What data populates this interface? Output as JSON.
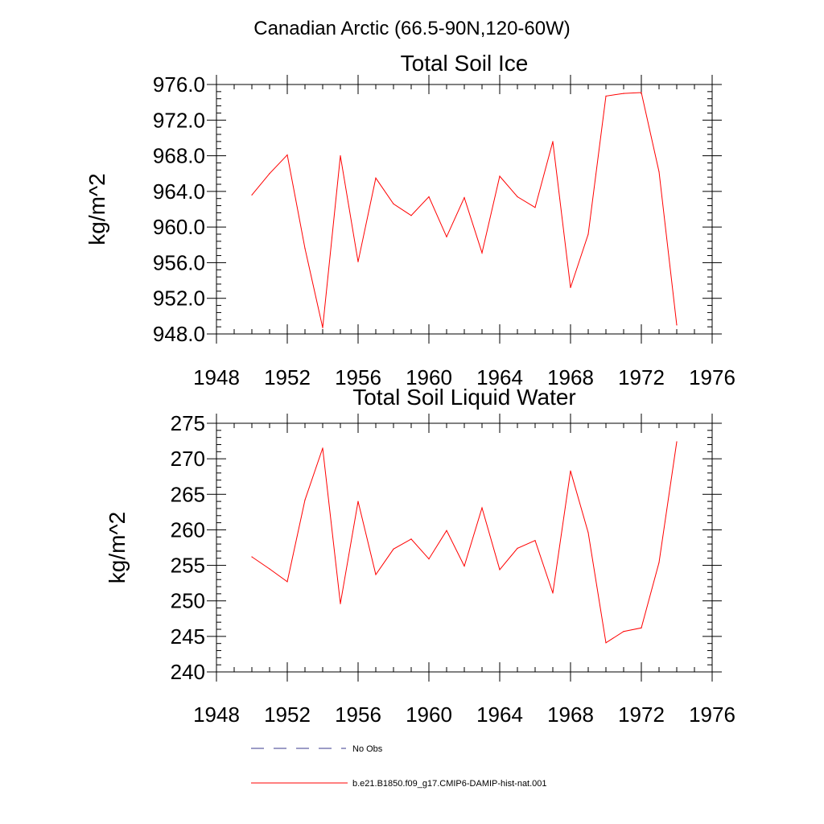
{
  "suptitle": "Canadian Arctic (66.5-90N,120-60W)",
  "colors": {
    "model_line": "#ff0000",
    "obs_line": "#3a3a8c",
    "axis": "#000000"
  },
  "legend": {
    "obs_label": "No Obs",
    "model_label": "b.e21.B1850.f09_g17.CMIP6-DAMIP-hist-nat.001"
  },
  "chart_data": [
    {
      "type": "line",
      "title": "Total Soil Ice",
      "ylabel": "kg/m^2",
      "xlim": [
        1948,
        1976
      ],
      "ylim": [
        948,
        976
      ],
      "xticks": [
        "1948",
        "1952",
        "1956",
        "1960",
        "1964",
        "1968",
        "1972",
        "1976"
      ],
      "yticks": [
        "948.0",
        "952.0",
        "956.0",
        "960.0",
        "964.0",
        "968.0",
        "972.0",
        "976.0"
      ],
      "x": [
        1950,
        1951,
        1952,
        1953,
        1954,
        1955,
        1956,
        1957,
        1958,
        1959,
        1960,
        1961,
        1962,
        1963,
        1964,
        1965,
        1966,
        1967,
        1968,
        1969,
        1970,
        1971,
        1972,
        1973,
        1974
      ],
      "series": [
        {
          "values": [
            963.6,
            966.0,
            968.1,
            957.6,
            948.7,
            968.0,
            956.1,
            965.5,
            962.6,
            961.3,
            963.4,
            958.9,
            963.3,
            957.1,
            965.7,
            963.4,
            962.2,
            969.6,
            953.2,
            959.2,
            974.7,
            975.0,
            975.1,
            966.2,
            949.0
          ]
        }
      ]
    },
    {
      "type": "line",
      "title": "Total Soil Liquid Water",
      "ylabel": "kg/m^2",
      "xlim": [
        1948,
        1976
      ],
      "ylim": [
        240,
        275
      ],
      "xticks": [
        "1948",
        "1952",
        "1956",
        "1960",
        "1964",
        "1968",
        "1972",
        "1976"
      ],
      "yticks": [
        "240",
        "245",
        "250",
        "255",
        "260",
        "265",
        "270",
        "275"
      ],
      "x": [
        1950,
        1951,
        1952,
        1953,
        1954,
        1955,
        1956,
        1957,
        1958,
        1959,
        1960,
        1961,
        1962,
        1963,
        1964,
        1965,
        1966,
        1967,
        1968,
        1969,
        1970,
        1971,
        1972,
        1973,
        1974
      ],
      "series": [
        {
          "values": [
            256.2,
            254.5,
            252.7,
            264.2,
            271.5,
            249.6,
            264.0,
            253.7,
            257.3,
            258.7,
            255.9,
            259.9,
            254.9,
            263.1,
            254.4,
            257.4,
            258.5,
            251.1,
            268.3,
            259.6,
            244.1,
            245.7,
            246.2,
            255.4,
            272.4
          ]
        }
      ]
    }
  ]
}
